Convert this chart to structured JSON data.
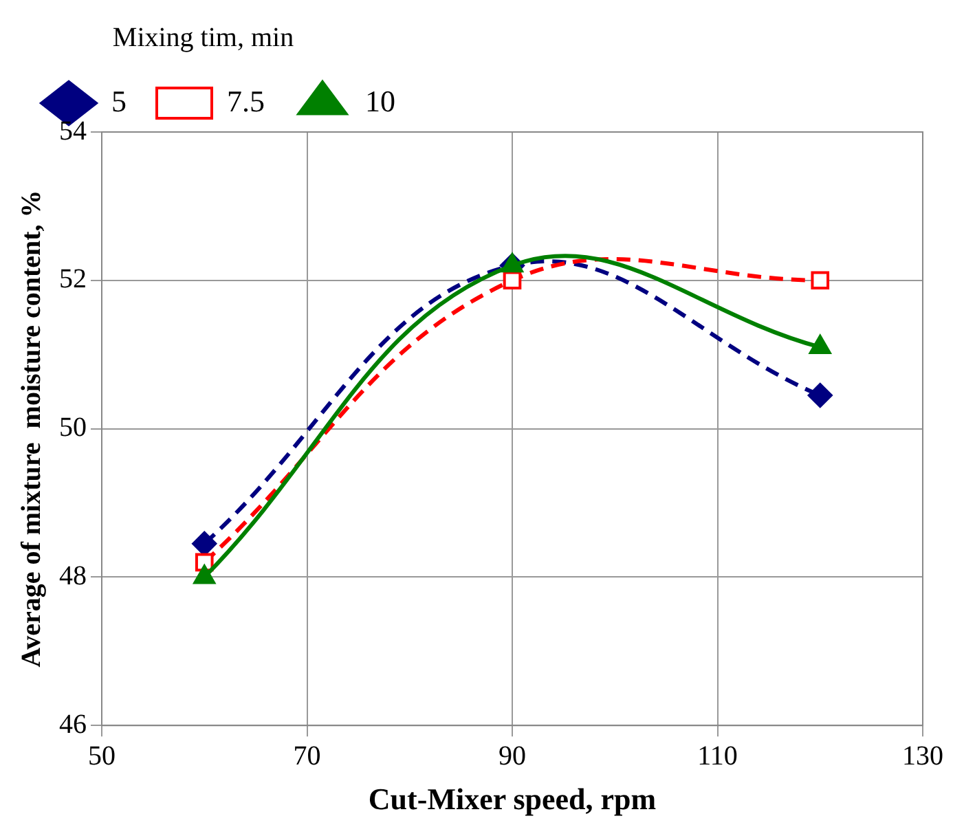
{
  "chart_data": {
    "type": "line",
    "xlabel": "Cut-Mixer speed, rpm",
    "ylabel": "Average of mixture  moisture content, %",
    "legend_title": "Mixing tim, min",
    "legend": "top left",
    "grid": true,
    "xlim": [
      50,
      130
    ],
    "xticks": [
      50,
      70,
      90,
      110,
      130
    ],
    "ylim": [
      46,
      54
    ],
    "yticks": [
      46,
      48,
      50,
      52,
      54
    ],
    "series": [
      {
        "name": "5",
        "color": "#000080",
        "x": [
          60,
          90,
          120
        ],
        "values": [
          48.45,
          52.2,
          50.45
        ],
        "marker": "diamond",
        "line_style": "dashed"
      },
      {
        "name": "7.5",
        "color": "#ff0000",
        "x": [
          60,
          90,
          120
        ],
        "values": [
          48.2,
          52.0,
          52.0
        ],
        "marker": "square",
        "line_style": "dashed"
      },
      {
        "name": "10",
        "color": "#008000",
        "x": [
          60,
          90,
          120
        ],
        "values": [
          48.0,
          52.2,
          51.1
        ],
        "marker": "triangle",
        "line_style": "solid"
      }
    ]
  }
}
